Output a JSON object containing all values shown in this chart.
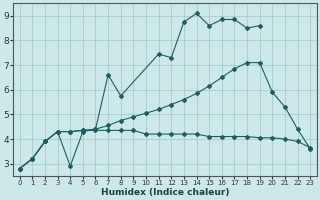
{
  "xlabel": "Humidex (Indice chaleur)",
  "bg_color": "#cce8e8",
  "grid_color": "#aacccc",
  "line_color": "#1a6060",
  "xlim": [
    -0.5,
    23.5
  ],
  "ylim": [
    2.5,
    9.5
  ],
  "xticks": [
    0,
    1,
    2,
    3,
    4,
    5,
    6,
    7,
    8,
    9,
    10,
    11,
    12,
    13,
    14,
    15,
    16,
    17,
    18,
    19,
    20,
    21,
    22,
    23
  ],
  "yticks": [
    3,
    4,
    5,
    6,
    7,
    8,
    9
  ],
  "series": [
    {
      "x": [
        0,
        1,
        2,
        3,
        4,
        5,
        6,
        7,
        8,
        11,
        12,
        13,
        14,
        15,
        16,
        17,
        18,
        19
      ],
      "y": [
        2.8,
        3.2,
        3.9,
        4.3,
        2.9,
        4.3,
        4.4,
        6.6,
        5.75,
        7.45,
        7.3,
        8.75,
        9.1,
        8.6,
        8.85,
        8.85,
        8.5,
        8.6
      ]
    },
    {
      "x": [
        0,
        1,
        2,
        3,
        4,
        5,
        6,
        7,
        8,
        9,
        10,
        11,
        12,
        13,
        14,
        15,
        16,
        17,
        18,
        19,
        20,
        21,
        22,
        23
      ],
      "y": [
        2.8,
        3.2,
        3.9,
        4.3,
        4.3,
        4.35,
        4.4,
        4.55,
        4.75,
        4.9,
        5.05,
        5.2,
        5.4,
        5.6,
        5.85,
        6.15,
        6.5,
        6.85,
        7.1,
        7.1,
        5.9,
        5.3,
        4.4,
        3.6
      ]
    },
    {
      "x": [
        0,
        1,
        2,
        3,
        4,
        5,
        6,
        7,
        8,
        9,
        10,
        11,
        12,
        13,
        14,
        15,
        16,
        17,
        18,
        19,
        20,
        21,
        22,
        23
      ],
      "y": [
        2.8,
        3.2,
        3.9,
        4.3,
        4.3,
        4.35,
        4.35,
        4.35,
        4.35,
        4.35,
        4.2,
        4.2,
        4.2,
        4.2,
        4.2,
        4.1,
        4.1,
        4.1,
        4.1,
        4.05,
        4.05,
        4.0,
        3.9,
        3.65
      ]
    }
  ]
}
